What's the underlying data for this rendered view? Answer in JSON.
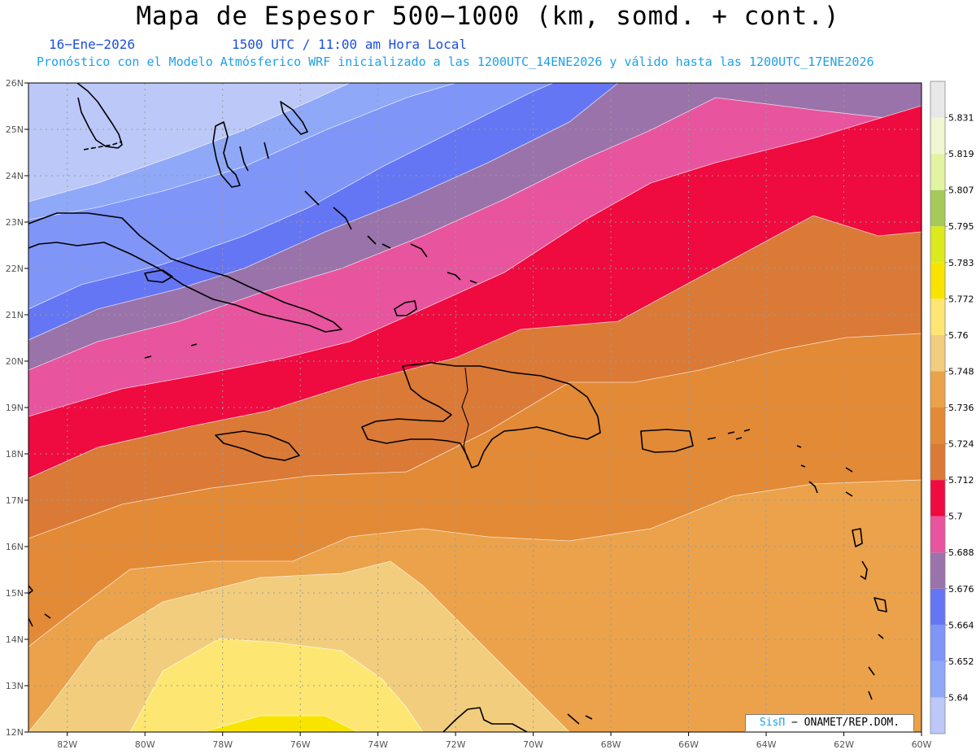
{
  "title": "Mapa de Espesor 500−1000 (km, somd. + cont.)",
  "date_label": "16−Ene−2026",
  "time_label": "1500 UTC / 11:00 am Hora Local",
  "forecast_label": "Pronóstico con el Modelo Atmósferico WRF inicializado a las 1200UTC_14ENE2026 y válido hasta las  1200UTC_17ENE2026",
  "credit": {
    "brand": "SisΠ",
    "text": " − ONAMET/REP.DOM."
  },
  "chart_data": {
    "type": "filled-contour-map",
    "variable": "thickness 500-1000 hPa",
    "units": "km",
    "lon_range": [
      -83,
      -60
    ],
    "lat_range": [
      12,
      26
    ],
    "x_ticks": [
      "82W",
      "80W",
      "78W",
      "76W",
      "74W",
      "72W",
      "70W",
      "68W",
      "66W",
      "64W",
      "62W",
      "60W"
    ],
    "y_ticks": [
      "12N",
      "13N",
      "14N",
      "15N",
      "16N",
      "17N",
      "18N",
      "19N",
      "20N",
      "21N",
      "22N",
      "23N",
      "24N",
      "25N",
      "26N"
    ],
    "grid": "dotted",
    "colorbar": {
      "labels": [
        "5.64",
        "5.652",
        "5.664",
        "5.676",
        "5.688",
        "5.7",
        "5.712",
        "5.724",
        "5.736",
        "5.748",
        "5.76",
        "5.772",
        "5.783",
        "5.795",
        "5.807",
        "5.819",
        "5.831"
      ],
      "colors": [
        "#bcc8f8",
        "#8fa8f8",
        "#7f95f8",
        "#6476f4",
        "#9a73aa",
        "#e8549e",
        "#ef0a3f",
        "#da7a36",
        "#e38a36",
        "#eba24a",
        "#f1cd7d",
        "#fde772",
        "#f9e400",
        "#dce91c",
        "#a6c95a",
        "#e2f4a2",
        "#f0f7d2",
        "#e8e8e8"
      ]
    },
    "field_bands": [
      {
        "min": "< 5.64",
        "color": "#bcc8f8"
      },
      {
        "min": "5.64",
        "color": "#8fa8f8"
      },
      {
        "min": "5.652",
        "color": "#7f95f8"
      },
      {
        "min": "5.664",
        "color": "#6476f4"
      },
      {
        "min": "5.676",
        "color": "#9a73aa"
      },
      {
        "min": "5.688",
        "color": "#e8549e"
      },
      {
        "min": "5.7",
        "color": "#ef0a3f"
      },
      {
        "min": "5.712",
        "color": "#da7a36"
      },
      {
        "min": "5.724",
        "color": "#e38a36"
      },
      {
        "min": "5.736",
        "color": "#eba24a"
      },
      {
        "min": "5.748",
        "color": "#f1cd7d"
      },
      {
        "min": "5.76",
        "color": "#fde772"
      },
      {
        "min": "5.772",
        "color": "#f9e400"
      },
      {
        "min": "5.783",
        "color": "#dce91c"
      }
    ]
  }
}
